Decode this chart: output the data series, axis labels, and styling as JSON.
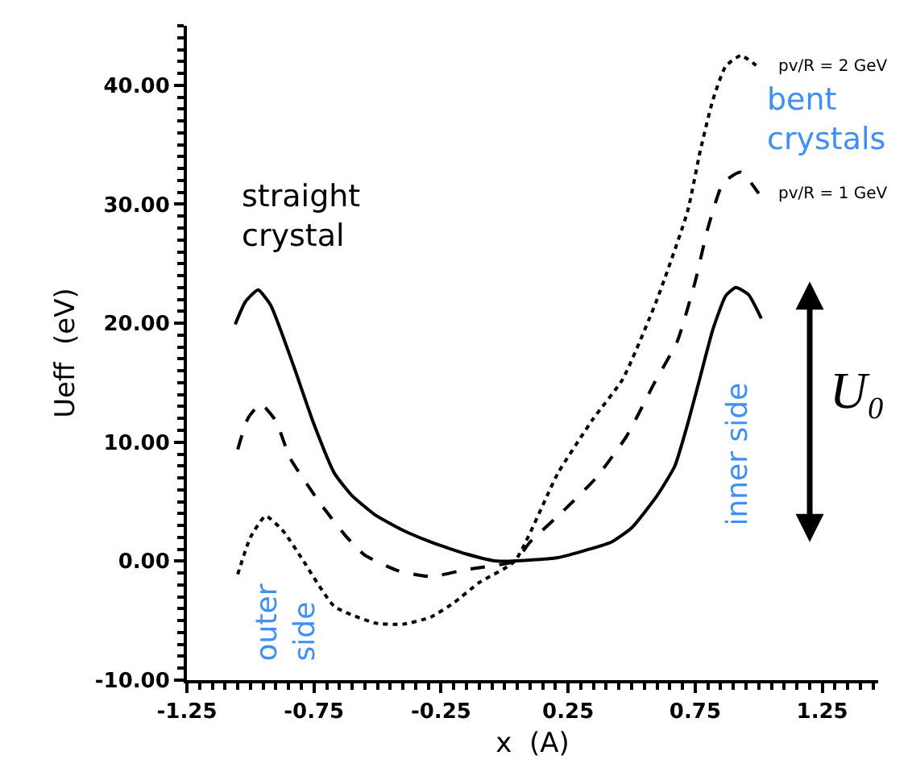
{
  "chart_data": {
    "type": "line",
    "xlabel": "x  (A)",
    "ylabel": "Ueff  (eV)",
    "xlim": [
      -1.25,
      1.47
    ],
    "ylim": [
      -10,
      45
    ],
    "xticks": [
      {
        "value": -1.25,
        "label": "-1.25"
      },
      {
        "value": -0.75,
        "label": "-0.75"
      },
      {
        "value": -0.25,
        "label": "-0.25"
      },
      0.25,
      0.75,
      1.25
    ],
    "yticks": [
      {
        "value": -10,
        "label": "-10.00"
      },
      {
        "value": 0,
        "label": "0.00"
      },
      {
        "value": 10,
        "label": "10.00"
      },
      {
        "value": 20,
        "label": "20.00"
      },
      {
        "value": 30,
        "label": "30.00"
      },
      {
        "value": 40,
        "label": "40.00"
      }
    ],
    "legend": false,
    "marker": "none",
    "series": [
      {
        "color": "#000000",
        "line_style": "solid",
        "x": [
          -1.06,
          -1.02,
          -0.97,
          -0.92,
          -0.83,
          -0.75,
          -0.67,
          -0.6,
          -0.51,
          -0.4,
          -0.29,
          -0.15,
          -0.03,
          0.1,
          0.21,
          0.3,
          0.42,
          0.5,
          0.6,
          0.67,
          0.72,
          0.77,
          0.82,
          0.87,
          0.91,
          0.96,
          1.01
        ],
        "values": [
          19.9,
          21.8,
          22.8,
          21.5,
          16.4,
          11.5,
          7.4,
          5.5,
          3.9,
          2.6,
          1.6,
          0.6,
          0.0,
          0.1,
          0.3,
          0.8,
          1.6,
          2.8,
          5.5,
          8.0,
          11.5,
          15.5,
          19.5,
          22.3,
          23.0,
          22.4,
          20.4
        ]
      },
      {
        "name": "pv/R = 1 GeV",
        "color": "#000000",
        "line_style": "dashed",
        "x": [
          -1.05,
          -1.01,
          -0.96,
          -0.9,
          -0.845,
          -0.72,
          -0.62,
          -0.55,
          -0.42,
          -0.29,
          -0.15,
          0.04,
          0.1,
          0.23,
          0.36,
          0.48,
          0.59,
          0.68,
          0.75,
          0.8,
          0.86,
          0.93,
          1.0
        ],
        "values": [
          9.4,
          12.0,
          13.2,
          11.8,
          8.7,
          4.7,
          2.0,
          0.5,
          -0.8,
          -1.3,
          -0.7,
          0.0,
          1.6,
          4.2,
          7.0,
          10.5,
          15.0,
          18.5,
          23.5,
          28.0,
          31.8,
          32.7,
          30.9
        ]
      },
      {
        "name": "pv/R = 2 GeV",
        "color": "#000000",
        "line_style": "dotted",
        "x": [
          -1.05,
          -1.0,
          -0.94,
          -0.87,
          -0.8,
          -0.67,
          -0.51,
          -0.4,
          -0.29,
          -0.2,
          -0.1,
          0.04,
          0.21,
          0.35,
          0.465,
          0.6,
          0.72,
          0.77,
          0.82,
          0.87,
          0.93,
          1.0
        ],
        "values": [
          -1.1,
          2.0,
          3.8,
          2.5,
          0.3,
          -3.8,
          -5.2,
          -5.3,
          -4.7,
          -3.5,
          -1.8,
          0.0,
          7.4,
          12.0,
          15.3,
          22.0,
          29.4,
          34.5,
          38.8,
          41.6,
          42.5,
          41.5
        ]
      }
    ],
    "annotations": [
      "straight\ncrystal",
      "bent\ncrystals",
      "outer\nside",
      "inner side",
      "U₀"
    ]
  }
}
